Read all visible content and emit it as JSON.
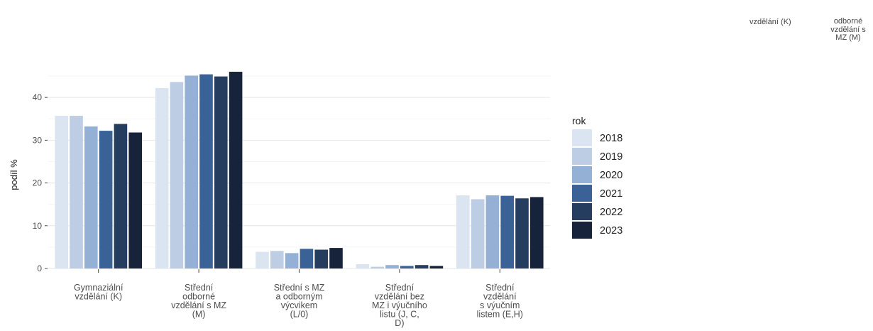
{
  "corner_fragments": {
    "left": "vzdělání (K)",
    "right": [
      "odborné",
      "vzdělání s",
      "MZ (M)"
    ]
  },
  "chart_data": {
    "type": "bar",
    "title": "",
    "xlabel": "",
    "ylabel": "podíl %",
    "ylim": [
      0,
      47
    ],
    "yticks": [
      0,
      10,
      20,
      30,
      40
    ],
    "grid": true,
    "legend": {
      "title": "rok",
      "position": "right"
    },
    "categories": [
      [
        "Gymnaziální",
        "vzdělání (K)"
      ],
      [
        "Střední",
        "odborné",
        "vzdělání s MZ",
        "(M)"
      ],
      [
        "Střední s MZ",
        "a odborným",
        "výcvikem",
        "(L/0)"
      ],
      [
        "Střední",
        "vzdělání bez",
        "MZ i výučního",
        "listu (J, C,",
        "D)"
      ],
      [
        "Střední",
        "vzdělání",
        "s výučním",
        "listem (E,H)"
      ]
    ],
    "series": [
      {
        "name": "2018",
        "color": "#dbe5f1",
        "values": [
          35.7,
          42.2,
          3.9,
          1.0,
          17.1
        ]
      },
      {
        "name": "2019",
        "color": "#bccde4",
        "values": [
          35.7,
          43.6,
          4.1,
          0.4,
          16.2
        ]
      },
      {
        "name": "2020",
        "color": "#94b0d4",
        "values": [
          33.2,
          45.1,
          3.6,
          0.8,
          17.1
        ]
      },
      {
        "name": "2021",
        "color": "#3a6296",
        "values": [
          32.2,
          45.4,
          4.6,
          0.6,
          17.0
        ]
      },
      {
        "name": "2022",
        "color": "#253e60",
        "values": [
          33.8,
          44.9,
          4.4,
          0.8,
          16.4
        ]
      },
      {
        "name": "2023",
        "color": "#16233a",
        "values": [
          31.8,
          46.0,
          4.8,
          0.6,
          16.7
        ]
      }
    ]
  }
}
